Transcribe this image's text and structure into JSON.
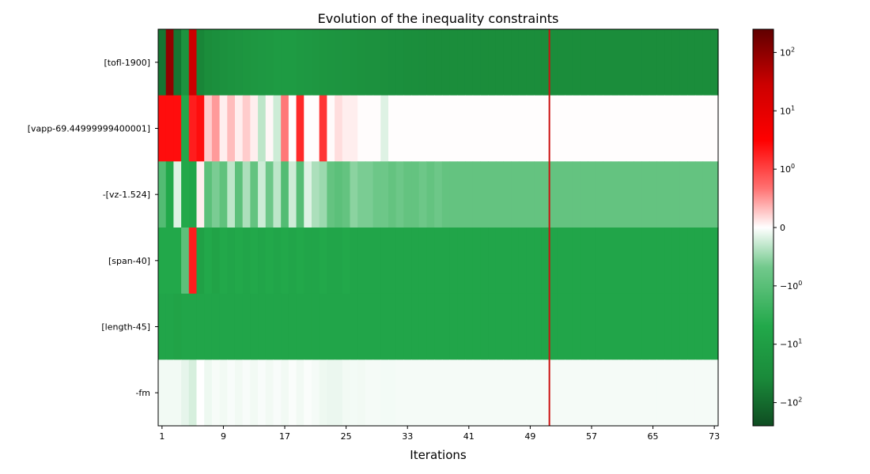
{
  "chart_data": {
    "type": "heatmap",
    "title": "Evolution of the inequality constraints",
    "xlabel": "Iterations",
    "ylabel": "",
    "n_iterations": 73,
    "x_ticks": [
      1,
      9,
      17,
      25,
      33,
      41,
      49,
      57,
      65,
      73
    ],
    "constraints": [
      "[tofl-1900]",
      "[vapp-69.44999999400001]",
      "-[vz-1.524]",
      "[span-40]",
      "[length-45]",
      "-fm"
    ],
    "optimum_iteration": 51.5,
    "optimum_line_color": "#cc1111",
    "colorbar": {
      "scale": "symlog",
      "tick_labels": [
        "10^2",
        "10^1",
        "10^0",
        "0",
        "-10^0",
        "-10^1",
        "-10^2"
      ],
      "tick_values": [
        100,
        10,
        1,
        0,
        -1,
        -10,
        -100
      ],
      "vmax": 250,
      "vmin": -250,
      "colors": [
        "#0f4d22",
        "#1a8a3a",
        "#22a84a",
        "#72c98c",
        "#ffffff",
        "#ff7070",
        "#ff0000",
        "#cc0000",
        "#600000"
      ]
    },
    "series": [
      {
        "name": "[tofl-1900]",
        "values": [
          -70,
          100,
          -70,
          -20,
          35,
          -40,
          -30,
          -25,
          -22,
          -20,
          -18,
          -16,
          -15,
          -14,
          -13,
          -12,
          -12,
          -12,
          -13,
          -14,
          -15,
          -16,
          -17,
          -18,
          -19,
          -20,
          -21,
          -22,
          -23,
          -24,
          -25,
          -26,
          -27,
          -28,
          -29,
          -30,
          -30,
          -30,
          -30,
          -30,
          -30,
          -30,
          -30,
          -30,
          -30,
          -30,
          -30,
          -30,
          -30,
          -30,
          -30,
          -30,
          -30,
          -30,
          -30,
          -30,
          -30,
          -30,
          -30,
          -30,
          -30,
          -30,
          -30,
          -30,
          -30,
          -30,
          -30,
          -30,
          -30,
          -30,
          -30,
          -30,
          -30
        ]
      },
      {
        "name": "[vapp-69.44999999400001]",
        "values": [
          4,
          4,
          4,
          -5,
          3,
          4,
          0.3,
          0.6,
          0.1,
          0.4,
          0.1,
          0.3,
          0.1,
          -0.4,
          0.05,
          -0.3,
          0.8,
          0.02,
          2.5,
          0.02,
          0.02,
          2,
          0.03,
          0.2,
          0.1,
          0.1,
          0.02,
          0.02,
          0.02,
          -0.2,
          0.01,
          0.01,
          0.01,
          0.01,
          0.01,
          0.01,
          0.01,
          0.01,
          0.01,
          0.01,
          0.01,
          0.01,
          0.01,
          0.01,
          0.01,
          0.01,
          0.01,
          0.01,
          0.01,
          0.01,
          0.01,
          0.01,
          0.01,
          0.01,
          0.01,
          0.01,
          0.01,
          0.01,
          0.01,
          0.01,
          0.01,
          0.01,
          0.01,
          0.01,
          0.01,
          0.01,
          0.01,
          0.01,
          0.01,
          0.01,
          0.01,
          0.01,
          0.01
        ]
      },
      {
        "name": "-[vz-1.524]",
        "values": [
          -1.5,
          -5,
          -0.2,
          -5,
          -6,
          0.1,
          -1.2,
          -0.8,
          -1.1,
          -0.4,
          -1.2,
          -0.5,
          -1.0,
          -0.3,
          -0.9,
          -0.4,
          -1.5,
          -0.3,
          -1.4,
          -0.2,
          -0.5,
          -0.6,
          -1.0,
          -1.2,
          -1.0,
          -0.7,
          -0.8,
          -0.8,
          -0.9,
          -0.9,
          -1.0,
          -0.9,
          -1.0,
          -1.0,
          -0.9,
          -1.0,
          -0.9,
          -1.0,
          -1.0,
          -1.0,
          -1.0,
          -1.0,
          -1.0,
          -1.0,
          -1.0,
          -1.0,
          -1.0,
          -1.0,
          -1.0,
          -1.0,
          -1.0,
          -1.0,
          -1.0,
          -1.0,
          -1.0,
          -1.0,
          -1.0,
          -1.0,
          -1.0,
          -1.0,
          -1.0,
          -1.0,
          -1.0,
          -1.0,
          -1.0,
          -1.0,
          -1.0,
          -1.0,
          -1.0,
          -1.0,
          -1.0,
          -1.0,
          -1.0
        ]
      },
      {
        "name": "[span-40]",
        "values": [
          -5,
          -5,
          -5,
          -1.2,
          3,
          -8,
          -5,
          -7,
          -5,
          -6,
          -5,
          -6,
          -5,
          -6,
          -5,
          -6,
          -5,
          -6,
          -5,
          -6,
          -6,
          -5,
          -6,
          -6,
          -5,
          -6,
          -6,
          -6,
          -6,
          -6,
          -6,
          -6,
          -6,
          -6,
          -6,
          -6,
          -6,
          -6,
          -6,
          -6,
          -6,
          -6,
          -6,
          -6,
          -6,
          -6,
          -6,
          -6,
          -6,
          -6,
          -6,
          -6,
          -6,
          -6,
          -6,
          -6,
          -6,
          -6,
          -6,
          -6,
          -6,
          -6,
          -6,
          -6,
          -6,
          -6,
          -6,
          -6,
          -6,
          -6,
          -6,
          -6,
          -6
        ]
      },
      {
        "name": "[length-45]",
        "values": [
          -6,
          -6,
          -7,
          -6,
          -6,
          -6,
          -6,
          -6,
          -6,
          -6,
          -6,
          -6,
          -6,
          -6,
          -6,
          -6,
          -6,
          -6,
          -6,
          -6,
          -6,
          -6,
          -6,
          -6,
          -6,
          -6,
          -6,
          -6,
          -6,
          -6,
          -6,
          -6,
          -6,
          -6,
          -6,
          -6,
          -6,
          -6,
          -6,
          -6,
          -6,
          -6,
          -6,
          -6,
          -6,
          -6,
          -6,
          -6,
          -6,
          -6,
          -6,
          -6,
          -6,
          -6,
          -6,
          -6,
          -6,
          -6,
          -6,
          -6,
          -6,
          -6,
          -6,
          -6,
          -6,
          -6,
          -6,
          -6,
          -6,
          -6,
          -6,
          -6,
          -6
        ]
      },
      {
        "name": "-fm",
        "values": [
          -0.08,
          -0.08,
          -0.08,
          -0.15,
          -0.25,
          0.0,
          -0.1,
          -0.05,
          -0.08,
          -0.04,
          -0.08,
          -0.04,
          -0.08,
          -0.04,
          -0.08,
          -0.04,
          -0.08,
          -0.03,
          -0.08,
          -0.03,
          -0.06,
          -0.1,
          -0.12,
          -0.12,
          -0.08,
          -0.07,
          -0.08,
          -0.06,
          -0.06,
          -0.07,
          -0.07,
          -0.06,
          -0.06,
          -0.06,
          -0.06,
          -0.06,
          -0.06,
          -0.06,
          -0.06,
          -0.06,
          -0.06,
          -0.06,
          -0.06,
          -0.06,
          -0.06,
          -0.06,
          -0.06,
          -0.06,
          -0.06,
          -0.06,
          -0.06,
          -0.06,
          -0.06,
          -0.06,
          -0.06,
          -0.06,
          -0.06,
          -0.06,
          -0.06,
          -0.06,
          -0.06,
          -0.06,
          -0.06,
          -0.06,
          -0.06,
          -0.06,
          -0.06,
          -0.06,
          -0.06,
          -0.06,
          -0.06,
          -0.06,
          -0.06
        ]
      }
    ]
  }
}
